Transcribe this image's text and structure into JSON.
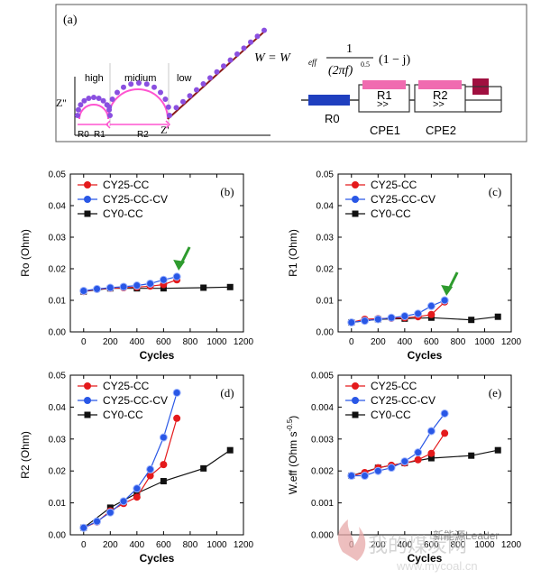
{
  "panel_a": {
    "label": "(a)",
    "regions": [
      "high",
      "midium",
      "low"
    ],
    "axis_y": "Z''",
    "axis_x": "Z'",
    "r_labels": [
      "R0",
      "R1",
      "R2"
    ],
    "circuit_labels": [
      "R0",
      "R1",
      "R2",
      "CPE1",
      "CPE2"
    ],
    "formula": {
      "lhs": "W = W",
      "sub": "eff",
      "num": "1",
      "den": "(2πf)",
      "den_exp": "0.5",
      "tail": "(1 − j)"
    },
    "colors": {
      "nyquist_points": "#8a4fe0",
      "fit": "#ff55d0",
      "warburg_line": "#8b1a1a",
      "r0_box": "#1f3fbf",
      "cpe_box": "#f06bb0",
      "w_box": "#a01040"
    }
  },
  "watermark": {
    "cn": "我的煤炭网",
    "logo_text": "新能源Leader",
    "url": "www.mycoal.cn"
  },
  "chart_data": [
    {
      "type": "line",
      "panel": "(b)",
      "xlabel": "Cycles",
      "ylabel": "Ro (Ohm)",
      "xlim": [
        -100,
        1200
      ],
      "ylim": [
        0,
        0.05
      ],
      "xticks": [
        "0",
        "200",
        "400",
        "600",
        "800",
        "1000",
        "1200"
      ],
      "yticks": [
        "0.00",
        "0.01",
        "0.02",
        "0.03",
        "0.04",
        "0.05"
      ],
      "legend": "top-left",
      "arrow_at": [
        700,
        0.018
      ],
      "series": [
        {
          "name": "CY25-CC",
          "color": "#e41a1c",
          "marker": "circle",
          "x": [
            0,
            100,
            200,
            300,
            400,
            500,
            600,
            700
          ],
          "y": [
            0.0128,
            0.0135,
            0.0138,
            0.014,
            0.0142,
            0.0145,
            0.015,
            0.0165
          ]
        },
        {
          "name": "CY25-CC-CV",
          "color": "#2957e6",
          "marker": "circle",
          "x": [
            0,
            100,
            200,
            300,
            400,
            500,
            600,
            700
          ],
          "y": [
            0.013,
            0.0136,
            0.014,
            0.0143,
            0.0147,
            0.0153,
            0.0165,
            0.0175
          ]
        },
        {
          "name": "CY0-CC",
          "color": "#111111",
          "marker": "square",
          "x": [
            0,
            200,
            400,
            600,
            900,
            1100
          ],
          "y": [
            0.0128,
            0.0138,
            0.0138,
            0.0138,
            0.014,
            0.0142
          ]
        }
      ]
    },
    {
      "type": "line",
      "panel": "(c)",
      "xlabel": "Cycles",
      "ylabel": "R1 (Ohm)",
      "xlim": [
        -100,
        1200
      ],
      "ylim": [
        0,
        0.05
      ],
      "xticks": [
        "0",
        "200",
        "400",
        "600",
        "800",
        "1000",
        "1200"
      ],
      "yticks": [
        "0.00",
        "0.01",
        "0.02",
        "0.03",
        "0.04",
        "0.05"
      ],
      "legend": "top-left",
      "arrow_at": [
        700,
        0.01
      ],
      "series": [
        {
          "name": "CY25-CC",
          "color": "#e41a1c",
          "marker": "circle",
          "x": [
            0,
            100,
            200,
            300,
            400,
            500,
            600,
            700
          ],
          "y": [
            0.003,
            0.004,
            0.0042,
            0.0043,
            0.0045,
            0.0048,
            0.0055,
            0.0095
          ]
        },
        {
          "name": "CY25-CC-CV",
          "color": "#2957e6",
          "marker": "circle",
          "x": [
            0,
            100,
            200,
            300,
            400,
            500,
            600,
            700
          ],
          "y": [
            0.003,
            0.0035,
            0.004,
            0.0045,
            0.005,
            0.0058,
            0.0082,
            0.01
          ]
        },
        {
          "name": "CY0-CC",
          "color": "#111111",
          "marker": "square",
          "x": [
            0,
            200,
            400,
            600,
            900,
            1100
          ],
          "y": [
            0.003,
            0.004,
            0.0042,
            0.0045,
            0.0038,
            0.0048
          ]
        }
      ]
    },
    {
      "type": "line",
      "panel": "(d)",
      "xlabel": "Cycles",
      "ylabel": "R2 (Ohm)",
      "xlim": [
        -100,
        1200
      ],
      "ylim": [
        0,
        0.05
      ],
      "xticks": [
        "0",
        "200",
        "400",
        "600",
        "800",
        "1000",
        "1200"
      ],
      "yticks": [
        "0.00",
        "0.01",
        "0.02",
        "0.03",
        "0.04",
        "0.05"
      ],
      "legend": "top-left",
      "series": [
        {
          "name": "CY25-CC",
          "color": "#e41a1c",
          "marker": "circle",
          "x": [
            0,
            100,
            200,
            300,
            400,
            500,
            600,
            700
          ],
          "y": [
            0.0022,
            0.004,
            0.0075,
            0.0098,
            0.0118,
            0.0185,
            0.022,
            0.0365
          ]
        },
        {
          "name": "CY25-CC-CV",
          "color": "#2957e6",
          "marker": "circle",
          "x": [
            0,
            100,
            200,
            300,
            400,
            500,
            600,
            700
          ],
          "y": [
            0.0022,
            0.0042,
            0.007,
            0.0105,
            0.0145,
            0.0205,
            0.0305,
            0.0445
          ]
        },
        {
          "name": "CY0-CC",
          "color": "#111111",
          "marker": "square",
          "x": [
            0,
            200,
            400,
            600,
            900,
            1100
          ],
          "y": [
            0.0022,
            0.0085,
            0.013,
            0.0168,
            0.0208,
            0.0265
          ]
        }
      ]
    },
    {
      "type": "line",
      "panel": "(e)",
      "xlabel": "Cycles",
      "ylabel": "W.eff (Ohm s",
      "ylabel_sup": "-0.5",
      "ylabel_end": ")",
      "xlim": [
        -100,
        1200
      ],
      "ylim": [
        0,
        0.005
      ],
      "xticks": [
        "0",
        "200",
        "400",
        "600",
        "800",
        "1000",
        "1200"
      ],
      "yticks": [
        "0.000",
        "0.001",
        "0.002",
        "0.003",
        "0.004",
        "0.005"
      ],
      "legend": "top-left",
      "series": [
        {
          "name": "CY25-CC",
          "color": "#e41a1c",
          "marker": "circle",
          "x": [
            0,
            100,
            200,
            300,
            400,
            500,
            600,
            700
          ],
          "y": [
            0.00185,
            0.00195,
            0.0021,
            0.00218,
            0.00225,
            0.00235,
            0.00255,
            0.00318
          ]
        },
        {
          "name": "CY25-CC-CV",
          "color": "#2957e6",
          "marker": "circle",
          "x": [
            0,
            100,
            200,
            300,
            400,
            500,
            600,
            700
          ],
          "y": [
            0.00185,
            0.00185,
            0.002,
            0.0021,
            0.0023,
            0.00258,
            0.00325,
            0.0038
          ]
        },
        {
          "name": "CY0-CC",
          "color": "#111111",
          "marker": "square",
          "x": [
            0,
            200,
            400,
            600,
            900,
            1100
          ],
          "y": [
            0.00185,
            0.0021,
            0.00225,
            0.0024,
            0.00248,
            0.00265
          ]
        }
      ]
    }
  ]
}
